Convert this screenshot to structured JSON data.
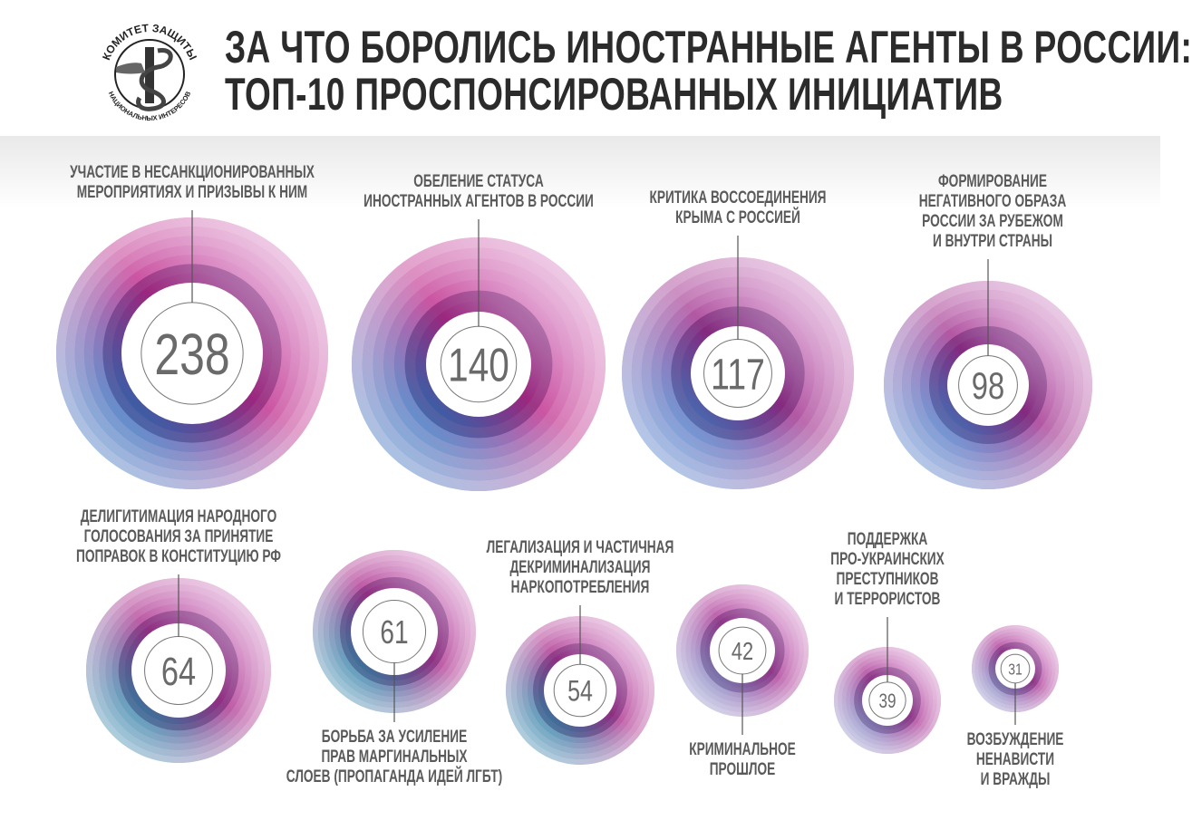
{
  "logo": {
    "top_text": "КОМИТЕТ ЗАЩИТЫ",
    "bottom_text": "НАЦИОНАЛЬНЫХ ИНТЕРЕСОВ"
  },
  "header": {
    "title_line1": "ЗА ЧТО БОРОЛИСЬ ИНОСТРАННЫЕ АГЕНТЫ В РОССИИ:",
    "title_line2": "ТОП-10 ПРОСПОНСИРОВАННЫХ ИНИЦИАТИВ"
  },
  "chart_data": {
    "type": "bubble",
    "title": "ЗА ЧТО БОРОЛИСЬ ИНОСТРАННЫЕ АГЕНТЫ В РОССИИ: ТОП-10 ПРОСПОНСИРОВАННЫХ ИНИЦИАТИВ",
    "items": [
      {
        "label": [
          "УЧАСТИЕ В НЕСАНКЦИОНИРОВАННЫХ",
          "МЕРОПРИЯТИЯХ И ПРИЗЫВЫ К НИМ"
        ],
        "value": 238
      },
      {
        "label": [
          "ОБЕЛЕНИЕ СТАТУСА",
          "ИНОСТРАННЫХ АГЕНТОВ В РОССИИ"
        ],
        "value": 140
      },
      {
        "label": [
          "КРИТИКА ВОССОЕДИНЕНИЯ",
          "КРЫМА С РОССИЕЙ"
        ],
        "value": 117
      },
      {
        "label": [
          "ФОРМИРОВАНИЕ",
          "НЕГАТИВНОГО ОБРАЗА",
          "РОССИИ ЗА РУБЕЖОМ",
          "И ВНУТРИ СТРАНЫ"
        ],
        "value": 98
      },
      {
        "label": [
          "ДЕЛИГИТИМАЦИЯ НАРОДНОГО",
          "ГОЛОСОВАНИЯ ЗА ПРИНЯТИЕ",
          "ПОПРАВОК В КОНСТИТУЦИЮ РФ"
        ],
        "value": 64
      },
      {
        "label": [
          "БОРЬБА ЗА УСИЛЕНИЕ",
          "ПРАВ МАРГИНАЛЬНЫХ",
          "СЛОЕВ (ПРОПАГАНДА ИДЕЙ ЛГБТ)"
        ],
        "value": 61
      },
      {
        "label": [
          "ЛЕГАЛИЗАЦИЯ И ЧАСТИЧНАЯ",
          "ДЕКРИМИНАЛИЗАЦИЯ",
          "НАРКОПОТРЕБЛЕНИЯ"
        ],
        "value": 54
      },
      {
        "label": [
          "КРИМИНАЛЬНОЕ",
          "ПРОШЛОЕ"
        ],
        "value": 42
      },
      {
        "label": [
          "ПОДДЕРЖКА",
          "ПРО-УКРАИНСКИХ",
          "ПРЕСТУПНИКОВ",
          "И ТЕРРОРИСТОВ"
        ],
        "value": 39
      },
      {
        "label": [
          "ВОЗБУЖДЕНИЕ",
          "НЕНАВИСТИ",
          "И ВРАЖДЫ"
        ],
        "value": 31
      }
    ],
    "colors": {
      "blue": "#1a8fd6",
      "magenta": "#b0278f",
      "purple": "#5b2a86",
      "teal": "#2bb3c0",
      "pink": "#e8a0d0"
    }
  }
}
